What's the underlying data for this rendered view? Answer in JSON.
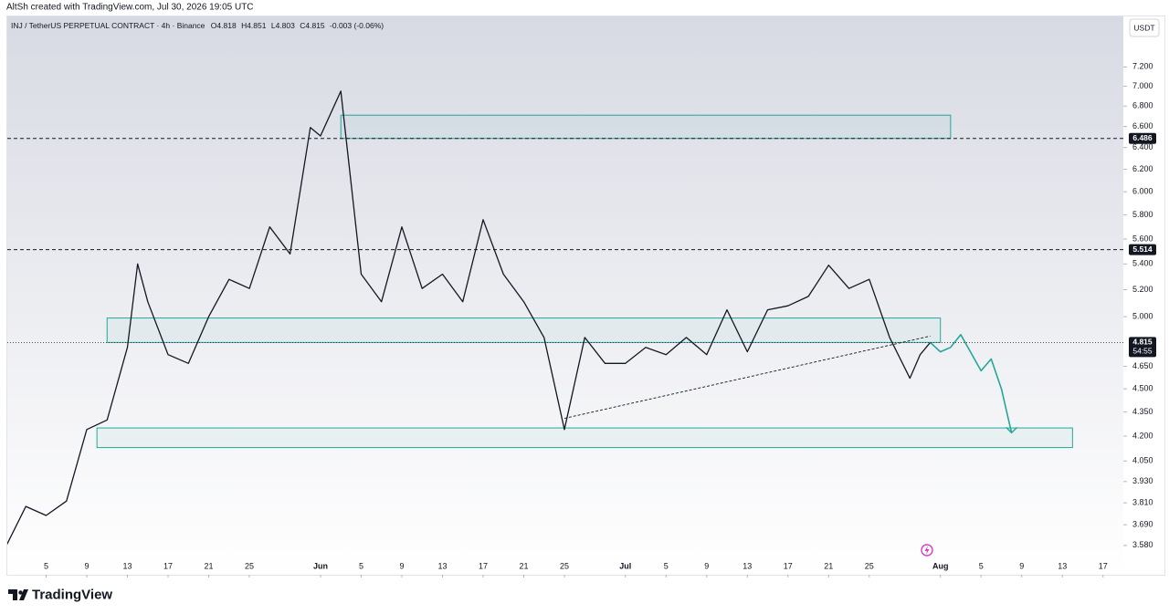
{
  "header": {
    "credit": "AltSh created with TradingView.com, Jul 30, 2026 19:05 UTC",
    "symbol": "INJ / TetherUS PERPETUAL CONTRACT · 4h · Binance",
    "ohlc": [
      "O4.818",
      "H4.851",
      "L4.803",
      "C4.815"
    ],
    "change": "-0.003 (-0.06%)"
  },
  "currency": "USDT",
  "brand": "TradingView",
  "chart_data": {
    "type": "line",
    "log_scale": true,
    "grid": false,
    "xlim": [
      "05-01",
      "08-19"
    ],
    "ylim": [
      3.43,
      7.73
    ],
    "xticks": [
      {
        "value": "05-05",
        "label": "5"
      },
      {
        "value": "05-09",
        "label": "9"
      },
      {
        "value": "05-13",
        "label": "13"
      },
      {
        "value": "05-17",
        "label": "17"
      },
      {
        "value": "05-21",
        "label": "21"
      },
      {
        "value": "05-25",
        "label": "25"
      },
      {
        "value": "06-01",
        "label": "Jun"
      },
      {
        "value": "06-05",
        "label": "5"
      },
      {
        "value": "06-09",
        "label": "9"
      },
      {
        "value": "06-13",
        "label": "13"
      },
      {
        "value": "06-17",
        "label": "17"
      },
      {
        "value": "06-21",
        "label": "21"
      },
      {
        "value": "06-25",
        "label": "25"
      },
      {
        "value": "07-01",
        "label": "Jul"
      },
      {
        "value": "07-05",
        "label": "5"
      },
      {
        "value": "07-09",
        "label": "9"
      },
      {
        "value": "07-13",
        "label": "13"
      },
      {
        "value": "07-17",
        "label": "17"
      },
      {
        "value": "07-21",
        "label": "21"
      },
      {
        "value": "07-25",
        "label": "25"
      },
      {
        "value": "08-01",
        "label": "Aug"
      },
      {
        "value": "08-05",
        "label": "5"
      },
      {
        "value": "08-09",
        "label": "9"
      },
      {
        "value": "08-13",
        "label": "13"
      },
      {
        "value": "08-17",
        "label": "17"
      }
    ],
    "yticks": [
      {
        "value": 3.58,
        "label": "3.580"
      },
      {
        "value": 3.69,
        "label": "3.690"
      },
      {
        "value": 3.81,
        "label": "3.810"
      },
      {
        "value": 3.93,
        "label": "3.930"
      },
      {
        "value": 4.05,
        "label": "4.050"
      },
      {
        "value": 4.2,
        "label": "4.200"
      },
      {
        "value": 4.35,
        "label": "4.350"
      },
      {
        "value": 4.5,
        "label": "4.500"
      },
      {
        "value": 4.65,
        "label": "4.650"
      },
      {
        "value": 5.0,
        "label": "5.000"
      },
      {
        "value": 5.2,
        "label": "5.200"
      },
      {
        "value": 5.4,
        "label": "5.400"
      },
      {
        "value": 5.6,
        "label": "5.600"
      },
      {
        "value": 5.8,
        "label": "5.800"
      },
      {
        "value": 6.0,
        "label": "6.000"
      },
      {
        "value": 6.2,
        "label": "6.200"
      },
      {
        "value": 6.4,
        "label": "6.400"
      },
      {
        "value": 6.6,
        "label": "6.600"
      },
      {
        "value": 6.8,
        "label": "6.800"
      },
      {
        "value": 7.0,
        "label": "7.000"
      },
      {
        "value": 7.2,
        "label": "7.200"
      }
    ],
    "series": [
      {
        "color": "#131722",
        "x": [
          "05-01",
          "05-03",
          "05-05",
          "05-07",
          "05-09",
          "05-11",
          "05-13",
          "05-14",
          "05-15",
          "05-17",
          "05-19",
          "05-21",
          "05-23",
          "05-25",
          "05-27",
          "05-29",
          "05-31",
          "06-01",
          "06-03",
          "06-05",
          "06-07",
          "06-09",
          "06-11",
          "06-13",
          "06-15",
          "06-17",
          "06-19",
          "06-21",
          "06-23",
          "06-25",
          "06-27",
          "06-29",
          "07-01",
          "07-03",
          "07-05",
          "07-07",
          "07-09",
          "07-11",
          "07-13",
          "07-15",
          "07-17",
          "07-19",
          "07-21",
          "07-23",
          "07-25",
          "07-27",
          "07-29",
          "07-30",
          "07-31"
        ],
        "values": [
          3.57,
          3.79,
          3.74,
          3.82,
          4.24,
          4.3,
          4.78,
          5.4,
          5.11,
          4.73,
          4.67,
          5.0,
          5.28,
          5.21,
          5.7,
          5.48,
          6.59,
          6.51,
          6.95,
          5.32,
          5.11,
          5.7,
          5.21,
          5.32,
          5.11,
          5.76,
          5.32,
          5.11,
          4.85,
          4.24,
          4.85,
          4.67,
          4.67,
          4.78,
          4.73,
          4.85,
          4.73,
          5.05,
          4.75,
          5.05,
          5.08,
          5.15,
          5.39,
          5.21,
          5.28,
          4.85,
          4.57,
          4.73,
          4.815
        ]
      },
      {
        "color": "#26a69a",
        "x": [
          "07-31",
          "08-01",
          "08-02",
          "08-03",
          "08-05",
          "08-06",
          "08-07",
          "08-08"
        ],
        "values": [
          4.815,
          4.75,
          4.78,
          4.87,
          4.62,
          4.7,
          4.5,
          4.22
        ]
      }
    ],
    "zones": [
      {
        "color": "#26a69a",
        "x": [
          "06-03",
          "08-02"
        ],
        "y": [
          6.486,
          6.71
        ]
      },
      {
        "color": "#26a69a",
        "x": [
          "05-11",
          "08-01"
        ],
        "y": [
          4.815,
          4.99
        ]
      },
      {
        "color": "#26a69a",
        "x": [
          "05-10",
          "08-14"
        ],
        "y": [
          4.13,
          4.25
        ]
      }
    ],
    "trendline": {
      "color": "#131722",
      "x": [
        "06-25",
        "07-31"
      ],
      "values": [
        4.31,
        4.86
      ]
    },
    "levels": [
      {
        "value": 6.486,
        "label": "6.486"
      },
      {
        "value": 5.514,
        "label": "5.514"
      }
    ],
    "last_price": {
      "value": 4.815,
      "label": "4.815",
      "countdown": "54:55"
    }
  }
}
